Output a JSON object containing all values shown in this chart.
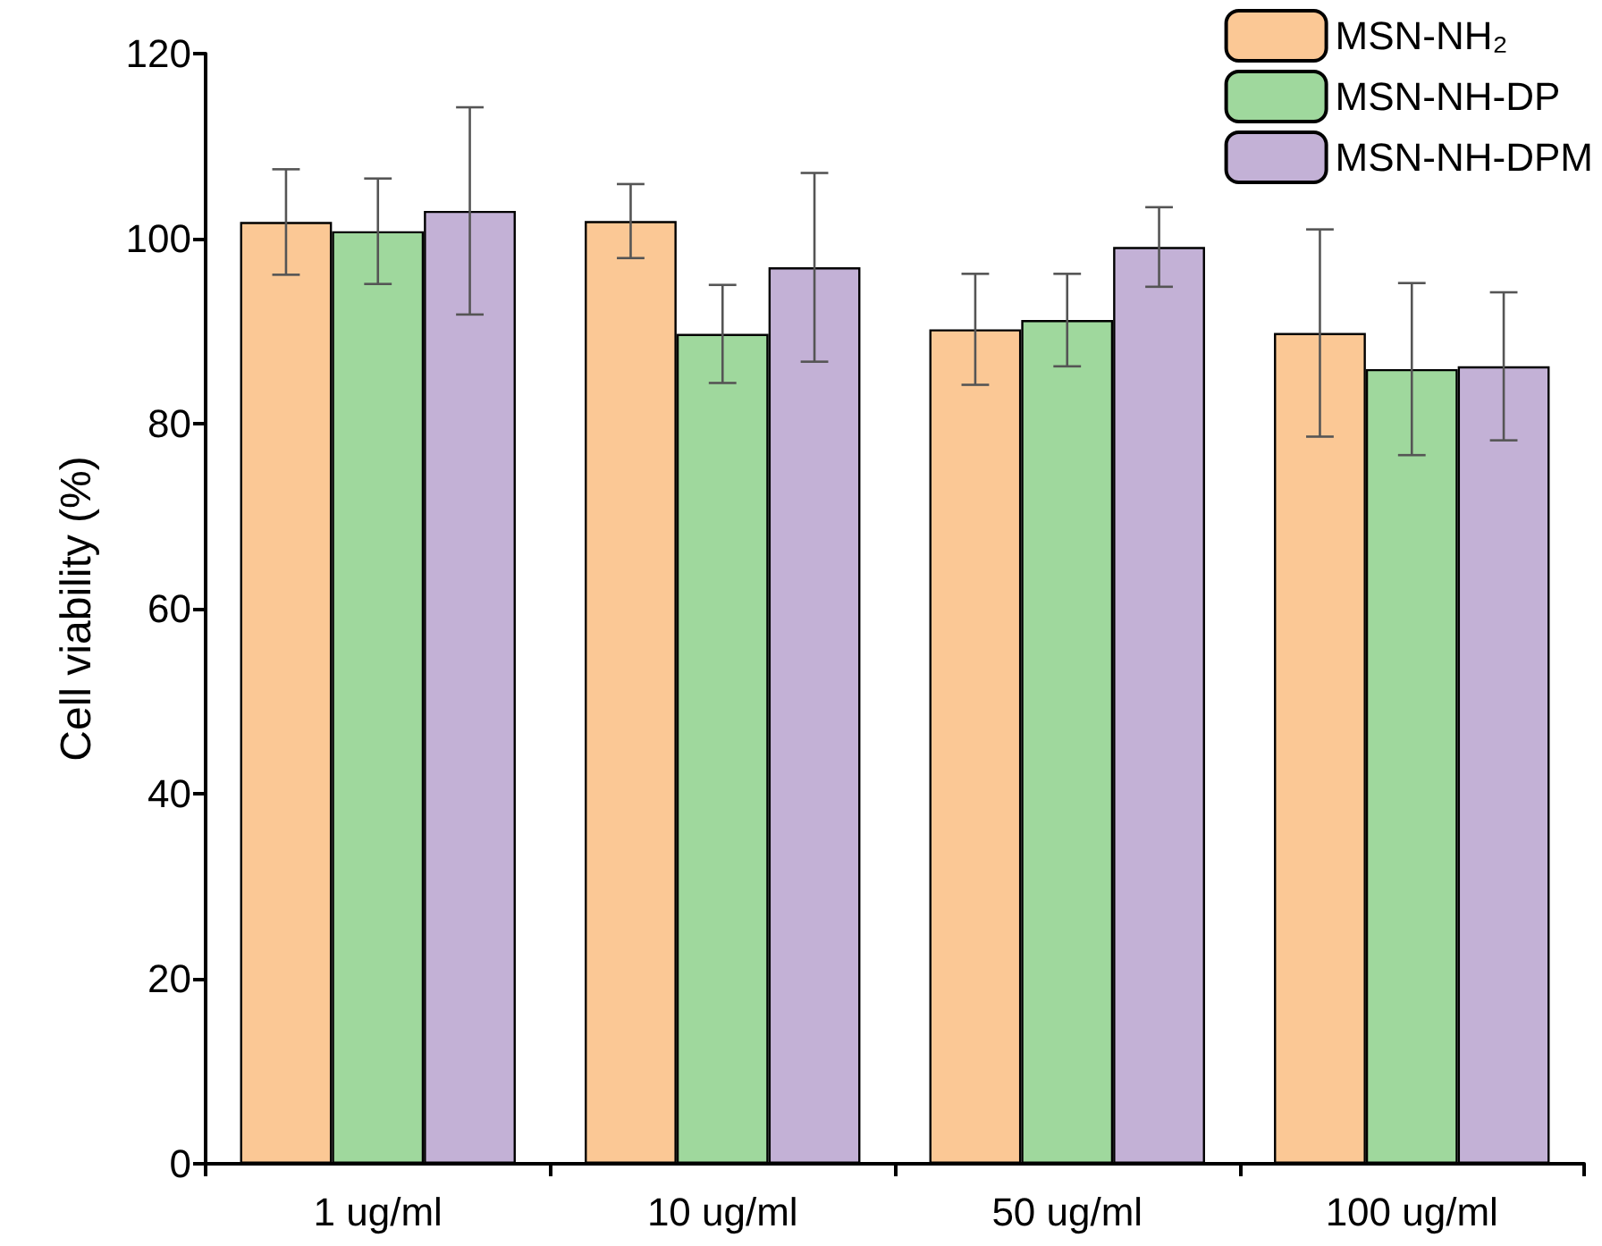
{
  "chart_data": {
    "type": "bar",
    "ylabel": "Cell viability (%)",
    "categories": [
      "1 ug/ml",
      "10 ug/ml",
      "50 ug/ml",
      "100 ug/ml"
    ],
    "series": [
      {
        "name": "MSN-NH₂",
        "color": "#fbc895",
        "values": [
          101.8,
          101.9,
          90.2,
          89.8
        ],
        "errors": [
          5.7,
          4,
          6,
          11.2
        ]
      },
      {
        "name": "MSN-NH-DP",
        "color": "#9fd89d",
        "values": [
          100.8,
          89.7,
          91.2,
          85.9
        ],
        "errors": [
          5.7,
          5.3,
          5,
          9.3
        ]
      },
      {
        "name": "MSN-NH-DPM",
        "color": "#c3b1d6",
        "values": [
          103.0,
          96.9,
          99.1,
          86.2
        ],
        "errors": [
          11.2,
          10.2,
          4.3,
          8
        ]
      }
    ],
    "ylim": [
      0,
      120
    ],
    "yticks": [
      0,
      20,
      40,
      60,
      80,
      100,
      120
    ],
    "grid": false,
    "legend": "top right"
  }
}
